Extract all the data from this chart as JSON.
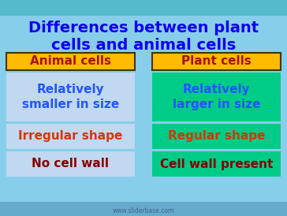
{
  "title": "Differences between plant\ncells and animal cells",
  "title_color": "#1100ee",
  "bg_color": "#87ceeb",
  "top_bar_color": "#55bbcc",
  "bottom_bar_color": "#66aacc",
  "header_left": "Animal cells",
  "header_right": "Plant cells",
  "header_bg": "#ffbb00",
  "header_border": "#443300",
  "header_text_color": "#aa1100",
  "left_cell_bg": "#c0d8f0",
  "right_cell_bg": "#00cc88",
  "rows": [
    [
      "Relatively\nsmaller in size",
      "Relatively\nlarger in size"
    ],
    [
      "Irregular shape",
      "Regular shape"
    ],
    [
      "No cell wall",
      "Cell wall present"
    ]
  ],
  "row_text_colors_left": [
    "#2255ff",
    "#dd3300",
    "#880000"
  ],
  "row_text_colors_right": [
    "#2255ff",
    "#dd3300",
    "#880000"
  ],
  "watermark": "www.sliderbase.com",
  "figw": 3.64,
  "figh": 2.74,
  "dpi": 100
}
